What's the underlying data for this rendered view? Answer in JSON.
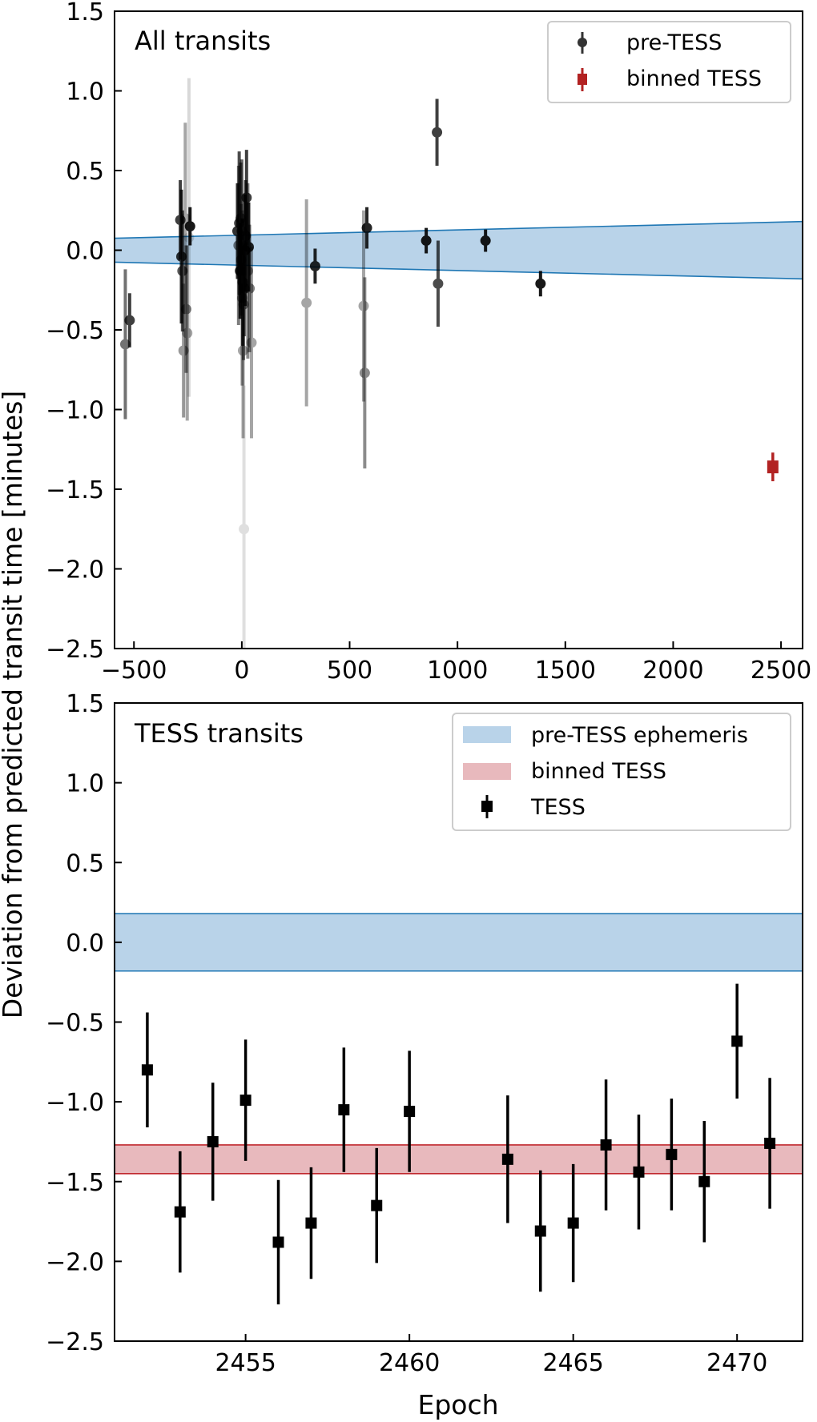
{
  "ylabel": "Deviation from predicted transit time [minutes]",
  "colors": {
    "band_blue_fill": "#b9d3e9",
    "band_blue_edge": "#1f77b4",
    "band_red_fill": "#e8b9bd",
    "band_red_edge": "#c0282e",
    "binned_red": "#b22222",
    "tess_black": "#000000"
  },
  "chart_data": [
    {
      "type": "scatter",
      "title": "All transits",
      "xlabel": "",
      "ylabel": "Deviation from predicted transit time [minutes]",
      "xlim": [
        -590,
        2600
      ],
      "ylim": [
        -2.5,
        1.5
      ],
      "xticks": [
        -500,
        0,
        500,
        1000,
        1500,
        2000,
        2500
      ],
      "xtick_labels": [
        "−500",
        "0",
        "500",
        "1000",
        "1500",
        "2000",
        "2500"
      ],
      "yticks": [
        1.5,
        1.0,
        0.5,
        0.0,
        -0.5,
        -1.0,
        -1.5,
        -2.0,
        -2.5
      ],
      "ytick_labels": [
        "1.5",
        "1.0",
        "0.5",
        "0.0",
        "−0.5",
        "−1.0",
        "−1.5",
        "−2.0",
        "−2.5"
      ],
      "legend": {
        "position": "top-right",
        "entries": [
          "pre-TESS",
          "binned TESS"
        ]
      },
      "band": {
        "name": "pre-TESS ephemeris",
        "x": [
          -590,
          2600
        ],
        "upper": [
          0.075,
          0.18
        ],
        "lower": [
          -0.075,
          -0.18
        ],
        "center": [
          0,
          0
        ]
      },
      "series": [
        {
          "name": "pre-TESS",
          "marker": "circle",
          "points": [
            {
              "x": -520,
              "y": -0.44,
              "err": 0.17,
              "alpha": 0.75
            },
            {
              "x": -540,
              "y": -0.59,
              "err": 0.47,
              "alpha": 0.55
            },
            {
              "x": -285,
              "y": 0.19,
              "err": 0.25,
              "alpha": 0.75
            },
            {
              "x": -280,
              "y": -0.04,
              "err": 0.42,
              "alpha": 0.8
            },
            {
              "x": -275,
              "y": -0.13,
              "err": 0.38,
              "alpha": 0.65
            },
            {
              "x": -270,
              "y": -0.63,
              "err": 0.42,
              "alpha": 0.4
            },
            {
              "x": -262,
              "y": 0.2,
              "err": 0.6,
              "alpha": 0.35
            },
            {
              "x": -258,
              "y": -0.37,
              "err": 0.4,
              "alpha": 0.5
            },
            {
              "x": -253,
              "y": -0.52,
              "err": 0.55,
              "alpha": 0.35
            },
            {
              "x": -245,
              "y": 0.08,
              "err": 1.0,
              "alpha": 0.15
            },
            {
              "x": -240,
              "y": 0.15,
              "err": 0.12,
              "alpha": 0.9
            },
            {
              "x": -20,
              "y": 0.12,
              "err": 0.3,
              "alpha": 0.8
            },
            {
              "x": -15,
              "y": 0.03,
              "err": 0.5,
              "alpha": 0.5
            },
            {
              "x": -12,
              "y": 0.17,
              "err": 0.45,
              "alpha": 0.7
            },
            {
              "x": -8,
              "y": -0.13,
              "err": 0.3,
              "alpha": 0.85
            },
            {
              "x": -5,
              "y": 0.2,
              "err": 0.35,
              "alpha": 0.6
            },
            {
              "x": -3,
              "y": -0.06,
              "err": 0.35,
              "alpha": 0.5
            },
            {
              "x": 0,
              "y": 0.12,
              "err": 0.45,
              "alpha": 0.6
            },
            {
              "x": 2,
              "y": -0.3,
              "err": 0.55,
              "alpha": 0.4
            },
            {
              "x": 4,
              "y": -0.2,
              "err": 0.4,
              "alpha": 0.7
            },
            {
              "x": 6,
              "y": -0.63,
              "err": 0.55,
              "alpha": 0.35
            },
            {
              "x": 8,
              "y": -0.34,
              "err": 0.35,
              "alpha": 0.5
            },
            {
              "x": 10,
              "y": -1.75,
              "err": 0.9,
              "alpha": 0.12
            },
            {
              "x": 12,
              "y": -0.24,
              "err": 0.3,
              "alpha": 0.55
            },
            {
              "x": 15,
              "y": 0.0,
              "err": 0.35,
              "alpha": 0.85
            },
            {
              "x": 18,
              "y": 0.09,
              "err": 0.35,
              "alpha": 0.7
            },
            {
              "x": 22,
              "y": 0.33,
              "err": 0.3,
              "alpha": 0.75
            },
            {
              "x": 28,
              "y": -0.13,
              "err": 0.55,
              "alpha": 0.45
            },
            {
              "x": 32,
              "y": 0.02,
              "err": 0.28,
              "alpha": 0.85
            },
            {
              "x": 36,
              "y": -0.24,
              "err": 0.4,
              "alpha": 0.5
            },
            {
              "x": 45,
              "y": -0.58,
              "err": 0.6,
              "alpha": 0.35
            },
            {
              "x": 300,
              "y": -0.33,
              "err": 0.65,
              "alpha": 0.35
            },
            {
              "x": 340,
              "y": -0.1,
              "err": 0.11,
              "alpha": 0.85
            },
            {
              "x": 565,
              "y": -0.35,
              "err": 0.6,
              "alpha": 0.35
            },
            {
              "x": 570,
              "y": -0.77,
              "err": 0.6,
              "alpha": 0.45
            },
            {
              "x": 580,
              "y": 0.14,
              "err": 0.13,
              "alpha": 0.85
            },
            {
              "x": 855,
              "y": 0.06,
              "err": 0.08,
              "alpha": 0.9
            },
            {
              "x": 905,
              "y": 0.74,
              "err": 0.21,
              "alpha": 0.75
            },
            {
              "x": 910,
              "y": -0.21,
              "err": 0.27,
              "alpha": 0.7
            },
            {
              "x": 1130,
              "y": 0.06,
              "err": 0.07,
              "alpha": 0.9
            },
            {
              "x": 1385,
              "y": -0.21,
              "err": 0.08,
              "alpha": 0.9
            }
          ]
        },
        {
          "name": "binned TESS",
          "marker": "square",
          "points": [
            {
              "x": 2462,
              "y": -1.36,
              "err": 0.09,
              "alpha": 1
            }
          ]
        }
      ]
    },
    {
      "type": "scatter",
      "title": "TESS transits",
      "xlabel": "Epoch",
      "ylabel": "Deviation from predicted transit time [minutes]",
      "xlim": [
        2451,
        2472
      ],
      "ylim": [
        -2.5,
        1.5
      ],
      "xticks": [
        2455,
        2460,
        2465,
        2470
      ],
      "xtick_labels": [
        "2455",
        "2460",
        "2465",
        "2470"
      ],
      "yticks": [
        1.5,
        1.0,
        0.5,
        0.0,
        -0.5,
        -1.0,
        -1.5,
        -2.0,
        -2.5
      ],
      "ytick_labels": [
        "1.5",
        "1.0",
        "0.5",
        "0.0",
        "−0.5",
        "−1.0",
        "−1.5",
        "−2.0",
        "−2.5"
      ],
      "legend": {
        "position": "top-right",
        "entries": [
          "pre-TESS ephemeris",
          "binned TESS",
          "TESS"
        ]
      },
      "bands": [
        {
          "name": "pre-TESS ephemeris",
          "upper": 0.18,
          "lower": -0.18
        },
        {
          "name": "binned TESS",
          "upper": -1.27,
          "lower": -1.45
        }
      ],
      "series": [
        {
          "name": "TESS",
          "marker": "square",
          "points": [
            {
              "x": 2452,
              "y": -0.8,
              "err": 0.36
            },
            {
              "x": 2453,
              "y": -1.69,
              "err": 0.38
            },
            {
              "x": 2454,
              "y": -1.25,
              "err": 0.37
            },
            {
              "x": 2455,
              "y": -0.99,
              "err": 0.38
            },
            {
              "x": 2456,
              "y": -1.88,
              "err": 0.39
            },
            {
              "x": 2457,
              "y": -1.76,
              "err": 0.35
            },
            {
              "x": 2458,
              "y": -1.05,
              "err": 0.39
            },
            {
              "x": 2459,
              "y": -1.65,
              "err": 0.36
            },
            {
              "x": 2460,
              "y": -1.06,
              "err": 0.38
            },
            {
              "x": 2463,
              "y": -1.36,
              "err": 0.4
            },
            {
              "x": 2464,
              "y": -1.81,
              "err": 0.38
            },
            {
              "x": 2465,
              "y": -1.76,
              "err": 0.37
            },
            {
              "x": 2466,
              "y": -1.27,
              "err": 0.41
            },
            {
              "x": 2467,
              "y": -1.44,
              "err": 0.36
            },
            {
              "x": 2468,
              "y": -1.33,
              "err": 0.35
            },
            {
              "x": 2469,
              "y": -1.5,
              "err": 0.38
            },
            {
              "x": 2470,
              "y": -0.62,
              "err": 0.36
            },
            {
              "x": 2471,
              "y": -1.26,
              "err": 0.41
            }
          ]
        }
      ]
    }
  ]
}
